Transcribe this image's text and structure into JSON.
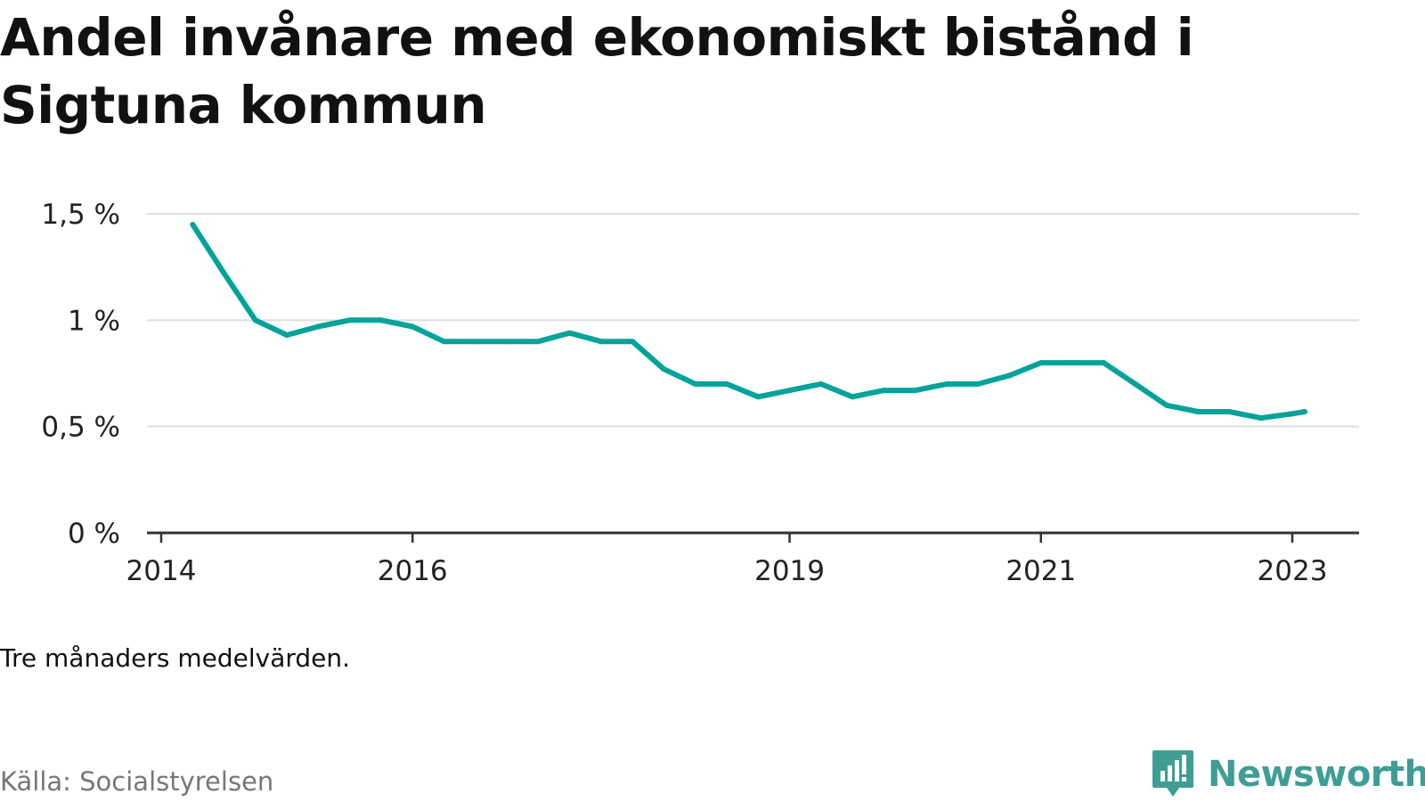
{
  "chart_data": {
    "type": "line",
    "title": "Andel invånare med ekonomiskt bistånd i Sigtuna kommun",
    "note": "Tre månaders medelvärden.",
    "source": "Källa: Socialstyrelsen",
    "brand": "Newsworthy",
    "line_color": "#00a39a",
    "grid": true,
    "ylim": [
      0,
      1.5
    ],
    "yticks": [
      0,
      0.5,
      1,
      1.5
    ],
    "ytick_labels": [
      "0 %",
      "0,5 %",
      "1 %",
      "1,5 %"
    ],
    "xlim": [
      2014.0,
      2023.25
    ],
    "xticks": [
      2014,
      2016,
      2019,
      2021,
      2023
    ],
    "xtick_labels": [
      "2014",
      "2016",
      "2019",
      "2021",
      "2023"
    ],
    "series": [
      {
        "x": [
          2014.25,
          2014.5,
          2014.75,
          2015.0,
          2015.25,
          2015.5,
          2015.75,
          2016.0,
          2016.25,
          2016.5,
          2016.75,
          2017.0,
          2017.25,
          2017.5,
          2017.75,
          2018.0,
          2018.25,
          2018.5,
          2018.75,
          2019.0,
          2019.25,
          2019.5,
          2019.75,
          2020.0,
          2020.25,
          2020.5,
          2020.75,
          2021.0,
          2021.25,
          2021.5,
          2021.75,
          2022.0,
          2022.25,
          2022.5,
          2022.75,
          2023.0,
          2023.1
        ],
        "values": [
          1.45,
          1.22,
          1.0,
          0.93,
          0.97,
          1.0,
          1.0,
          0.97,
          0.9,
          0.9,
          0.9,
          0.9,
          0.94,
          0.9,
          0.9,
          0.77,
          0.7,
          0.7,
          0.64,
          0.67,
          0.7,
          0.64,
          0.67,
          0.67,
          0.7,
          0.7,
          0.74,
          0.8,
          0.8,
          0.8,
          0.7,
          0.6,
          0.57,
          0.57,
          0.54,
          0.56,
          0.57
        ]
      }
    ]
  },
  "logo": {
    "text": "Newsworthy",
    "icon": "newsworthy-logo-icon",
    "color": "#3e9e95"
  }
}
